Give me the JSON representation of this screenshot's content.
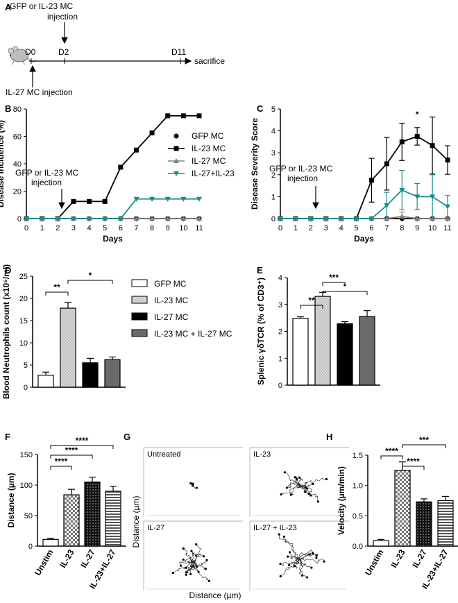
{
  "panel_letters": {
    "A": "A",
    "B": "B",
    "C": "C",
    "D": "D",
    "E": "E",
    "F": "F",
    "G": "G",
    "H": "H"
  },
  "panelA": {
    "top_label_line1": "GFP or IL-23 MC",
    "top_label_line2": "injection",
    "d0": "D0",
    "d2": "D2",
    "d11": "D11",
    "end_label": "sacrifice",
    "bottom_label": "IL-27 MC injection"
  },
  "chart_data": [
    {
      "id": "B",
      "type": "line",
      "title": "",
      "xlabel": "Days",
      "ylabel": "Disease  Incidence (%)",
      "x": [
        0,
        1,
        2,
        3,
        4,
        5,
        6,
        7,
        8,
        9,
        10,
        11
      ],
      "xlim": [
        0,
        11
      ],
      "ylim": [
        0,
        80
      ],
      "yticks": [
        0,
        20,
        40,
        60,
        80
      ],
      "series": [
        {
          "name": "GFP MC",
          "color": "#000000",
          "marker": "circle",
          "values": [
            0,
            0,
            0,
            0,
            0,
            0,
            0,
            0,
            0,
            0,
            0,
            0
          ]
        },
        {
          "name": "IL-23 MC",
          "color": "#000000",
          "marker": "square",
          "values": [
            0,
            0,
            0,
            12.5,
            12.5,
            12.5,
            37.5,
            50,
            62.5,
            75,
            75,
            75
          ]
        },
        {
          "name": "IL-27 MC",
          "color": "#808080",
          "marker": "triangle-up",
          "values": [
            0,
            0,
            0,
            0,
            0,
            0,
            0,
            0,
            0,
            0,
            0,
            0
          ]
        },
        {
          "name": "IL-27+IL-23",
          "color": "#1a8a8a",
          "marker": "triangle-down",
          "values": [
            0,
            0,
            0,
            0,
            0,
            0,
            0,
            14.3,
            14.3,
            14.3,
            14.3,
            14.3
          ]
        }
      ],
      "annotation": {
        "line1": "GFP or IL-23 MC",
        "line2": "injection",
        "x": 2
      }
    },
    {
      "id": "C",
      "type": "line",
      "title": "",
      "xlabel": "Days",
      "ylabel": "Disease Severity Score",
      "x": [
        0,
        1,
        2,
        3,
        4,
        5,
        6,
        7,
        8,
        9,
        10,
        11
      ],
      "xlim": [
        0,
        11
      ],
      "ylim": [
        0,
        5
      ],
      "yticks": [
        0,
        1,
        2,
        3,
        4,
        5
      ],
      "series": [
        {
          "name": "GFP MC",
          "color": "#000000",
          "marker": "circle",
          "values": [
            0,
            0,
            0,
            0,
            0,
            0,
            0,
            0,
            0,
            0,
            0,
            0
          ],
          "errors": [
            0,
            0,
            0,
            0,
            0,
            0,
            0,
            0,
            0,
            0,
            0,
            0
          ]
        },
        {
          "name": "IL-23 MC",
          "color": "#000000",
          "marker": "square",
          "values": [
            0,
            0,
            0,
            0,
            0,
            0,
            1.75,
            2.5,
            3.5,
            3.75,
            3.33,
            2.67
          ],
          "errors": [
            0,
            0,
            0,
            0,
            0,
            0,
            1.0,
            1.2,
            0.85,
            0.4,
            1.3,
            0.65
          ]
        },
        {
          "name": "IL-27 MC",
          "color": "#808080",
          "marker": "triangle-up",
          "values": [
            0,
            0,
            0,
            0,
            0,
            0,
            0,
            0,
            0.1,
            0,
            0,
            0
          ],
          "errors": [
            0,
            0,
            0,
            0,
            0,
            0,
            0,
            0,
            0.2,
            0,
            0,
            0
          ]
        },
        {
          "name": "IL-27+IL-23",
          "color": "#1a8a8a",
          "marker": "triangle-down",
          "values": [
            0,
            0,
            0,
            0,
            0,
            0,
            0,
            0.6,
            1.3,
            1.0,
            1.0,
            0.55
          ],
          "errors": [
            0,
            0,
            0,
            0,
            0,
            0,
            0,
            0.6,
            0.9,
            0.6,
            1.0,
            0.5
          ]
        }
      ],
      "annotation": {
        "line1": "GFP or IL-23 MC",
        "line2": "injection",
        "x": 2
      },
      "significance": [
        {
          "x": 9,
          "label": "*"
        }
      ]
    },
    {
      "id": "D",
      "type": "bar",
      "ylabel": "Blood Neutrophils count (x10⁵/ml)",
      "categories": [
        "GFP MC",
        "IL-23 MC",
        "IL-27 MC",
        "IL-23 MC + IL-27 MC"
      ],
      "values": [
        2.7,
        17.8,
        5.5,
        6.2
      ],
      "errors": [
        0.7,
        1.3,
        1.0,
        0.6
      ],
      "ylim": [
        0,
        25
      ],
      "yticks": [
        0,
        5,
        10,
        15,
        20,
        25
      ],
      "significance": [
        {
          "from": 0,
          "to": 1,
          "label": "**"
        },
        {
          "from": 1,
          "to": 3,
          "label": "*"
        }
      ]
    },
    {
      "id": "E",
      "type": "bar",
      "ylabel": "Splenic γδTCR (% of CD3⁺)",
      "categories": [
        "GFP MC",
        "IL-23 MC",
        "IL-27 MC",
        "IL-23 MC + IL-27 MC"
      ],
      "values": [
        2.48,
        3.3,
        2.28,
        2.55
      ],
      "errors": [
        0.06,
        0.15,
        0.08,
        0.22
      ],
      "ylim": [
        0,
        4
      ],
      "yticks": [
        0,
        1,
        2,
        3,
        4
      ],
      "significance": [
        {
          "from": 0,
          "to": 1,
          "label": "**"
        },
        {
          "from": 1,
          "to": 2,
          "label": "***"
        },
        {
          "from": 1,
          "to": 3,
          "label": "*"
        }
      ]
    },
    {
      "id": "F",
      "type": "bar",
      "ylabel": "Distance (µm)",
      "categories": [
        "Unstim",
        "IL-23",
        "IL-27",
        "IL-23+IL-27"
      ],
      "values": [
        11,
        84,
        105,
        90
      ],
      "errors": [
        2,
        9,
        8,
        8
      ],
      "ylim": [
        0,
        150
      ],
      "yticks": [
        0,
        50,
        100,
        150
      ],
      "significance": [
        {
          "from": 0,
          "to": 1,
          "label": "****"
        },
        {
          "from": 0,
          "to": 2,
          "label": "****"
        },
        {
          "from": 0,
          "to": 3,
          "label": "****"
        }
      ]
    },
    {
      "id": "H",
      "type": "bar",
      "ylabel": "Velocity (µm/min)",
      "categories": [
        "Unstim",
        "IL-23",
        "IL-27",
        "IL-23+IL-27"
      ],
      "values": [
        0.09,
        1.25,
        0.73,
        0.75
      ],
      "errors": [
        0.02,
        0.14,
        0.05,
        0.07
      ],
      "ylim": [
        0,
        1.5
      ],
      "yticks": [
        0.0,
        0.5,
        1.0,
        1.5
      ],
      "significance": [
        {
          "from": 0,
          "to": 1,
          "label": "****"
        },
        {
          "from": 1,
          "to": 2,
          "label": "****"
        },
        {
          "from": 1,
          "to": 3,
          "label": "***"
        }
      ]
    }
  ],
  "legend_D": [
    "GFP MC",
    "IL-23 MC",
    "IL-27 MC",
    "IL-23 MC + IL-27 MC"
  ],
  "panelG": {
    "panels": [
      "Untreated",
      "IL-23",
      "IL-27",
      "IL-27 + IL-23"
    ],
    "xlabel": "Distance (µm)",
    "ylabel": "Distance (µm)"
  }
}
